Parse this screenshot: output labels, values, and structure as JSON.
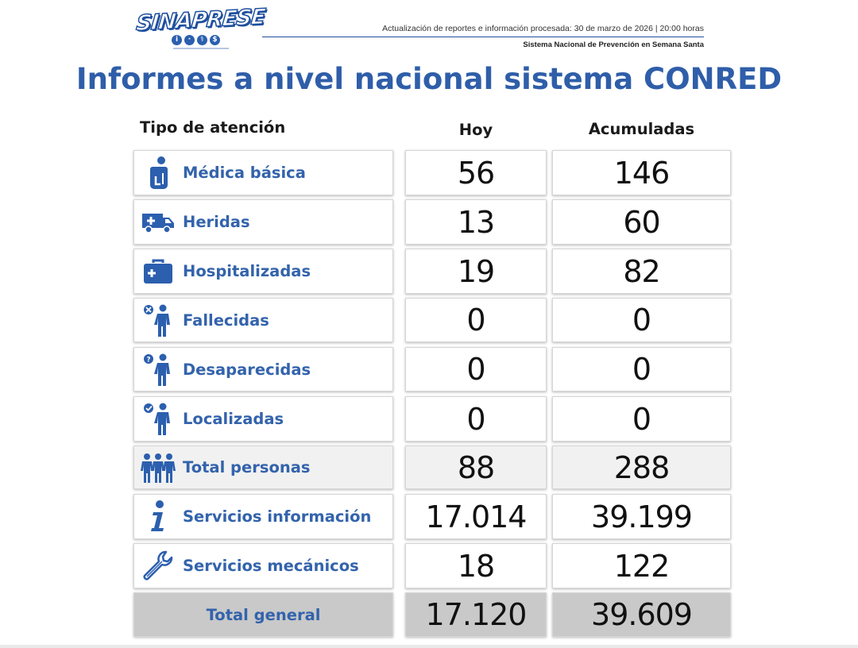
{
  "header": {
    "logo_text": "SINAPRESE",
    "logo_icons": [
      "i",
      "·",
      "⚕",
      "$"
    ],
    "update_text": "Actualización de reportes e información procesada: 30 de marzo de 2026 | 20:00 horas",
    "system_text": "Sistema Nacional de Prevención en Semana Santa"
  },
  "title": "Informes a nivel nacional sistema CONRED",
  "columns": {
    "tipo": "Tipo de atención",
    "hoy": "Hoy",
    "acumuladas": "Acumuladas"
  },
  "rows": [
    {
      "label": "Médica básica",
      "icon": "medical-person-icon",
      "hoy": "56",
      "acumuladas": "146"
    },
    {
      "label": "Heridas",
      "icon": "ambulance-icon",
      "hoy": "13",
      "acumuladas": "60"
    },
    {
      "label": "Hospitalizadas",
      "icon": "first-aid-kit-icon",
      "hoy": "19",
      "acumuladas": "82"
    },
    {
      "label": "Fallecidas",
      "icon": "person-x-icon",
      "hoy": "0",
      "acumuladas": "0"
    },
    {
      "label": "Desaparecidas",
      "icon": "person-question-icon",
      "hoy": "0",
      "acumuladas": "0"
    },
    {
      "label": "Localizadas",
      "icon": "person-check-icon",
      "hoy": "0",
      "acumuladas": "0"
    },
    {
      "label": "Total personas",
      "icon": "group-people-icon",
      "hoy": "88",
      "acumuladas": "288"
    },
    {
      "label": "Servicios información",
      "icon": "info-icon",
      "hoy": "17.014",
      "acumuladas": "39.199"
    },
    {
      "label": "Servicios mecánicos",
      "icon": "wrench-icon",
      "hoy": "18",
      "acumuladas": "122"
    },
    {
      "label": "Total general",
      "icon": "",
      "hoy": "17.120",
      "acumuladas": "39.609"
    }
  ],
  "colors": {
    "accent": "#2f5ea9",
    "label": "#3363ac",
    "icon": "#2c5fae",
    "total_row_bg": "#c9c9c9",
    "subtotal_bg": "#f1f1f1"
  }
}
